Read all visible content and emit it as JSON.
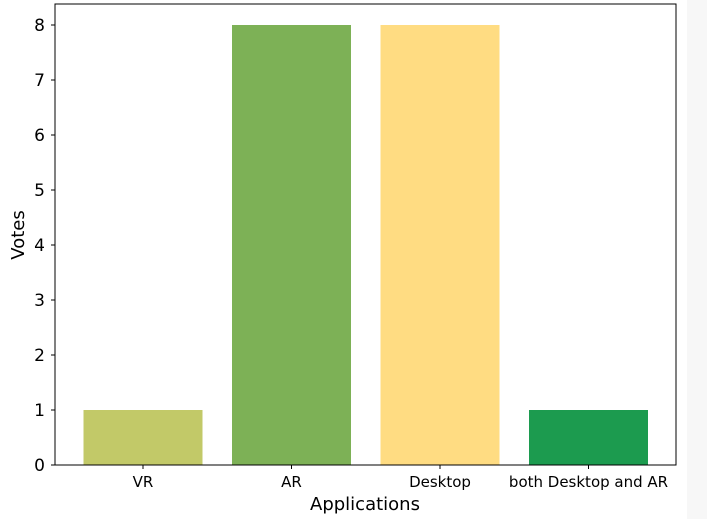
{
  "chart_data": {
    "type": "bar",
    "title": "",
    "xlabel": "Applications",
    "ylabel": "Votes",
    "categories": [
      "VR",
      "AR",
      "Desktop",
      "both Desktop and AR"
    ],
    "values": [
      1,
      8,
      8,
      1
    ],
    "colors": [
      "#c2c968",
      "#7db156",
      "#ffdc82",
      "#1c9b4f"
    ],
    "ylim": [
      0,
      8
    ],
    "yticks": [
      0,
      1,
      2,
      3,
      4,
      5,
      6,
      7,
      8
    ],
    "grid": false,
    "legend": "none"
  }
}
